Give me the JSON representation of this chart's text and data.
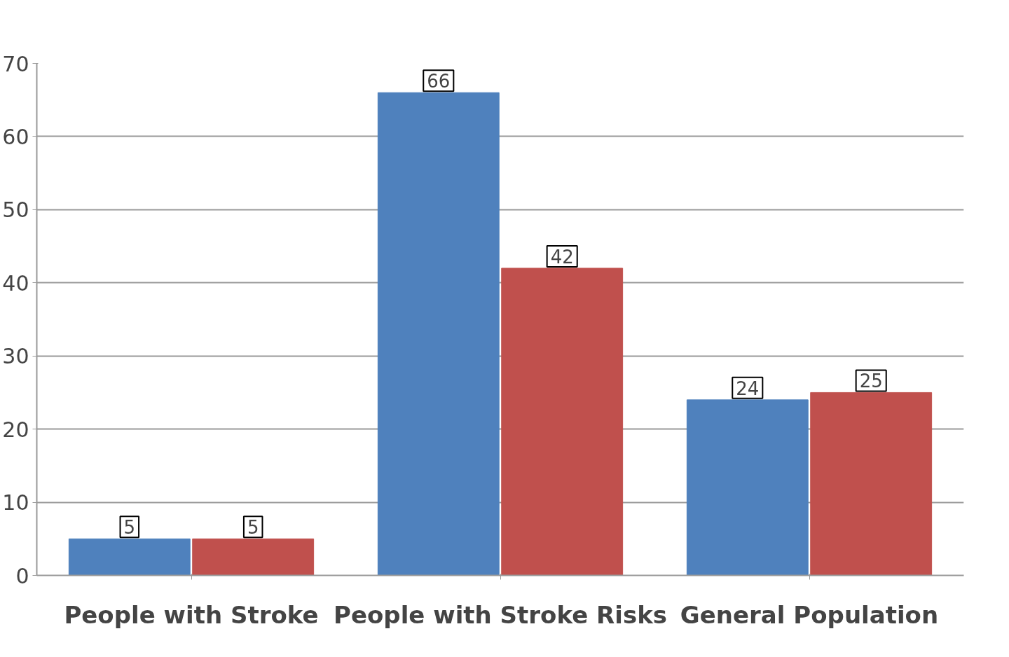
{
  "chart_data": {
    "type": "bar",
    "categories": [
      "People with Stroke",
      "People with Stroke Risks",
      "General Population"
    ],
    "series": [
      {
        "color": "#4f81bd",
        "values": [
          5,
          66,
          24
        ]
      },
      {
        "color": "#c0504d",
        "values": [
          5,
          42,
          25
        ]
      }
    ],
    "ylim": [
      0,
      70
    ],
    "yticks": [
      0,
      10,
      20,
      30,
      40,
      50,
      60,
      70
    ],
    "grid": "y",
    "data_labels": true
  }
}
